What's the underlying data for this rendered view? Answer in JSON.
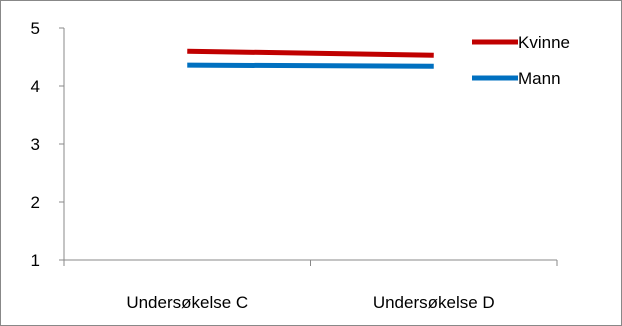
{
  "chart_data": {
    "type": "line",
    "categories": [
      "Undersøkelse C",
      "Undersøkelse D"
    ],
    "series": [
      {
        "name": "Kvinne",
        "values": [
          4.6,
          4.53
        ],
        "color": "#C00000"
      },
      {
        "name": "Mann",
        "values": [
          4.36,
          4.34
        ],
        "color": "#0070C0"
      }
    ],
    "ylim": [
      1,
      5
    ],
    "yticks": [
      "1",
      "2",
      "3",
      "4",
      "5"
    ],
    "grid": false,
    "legend": "top-right"
  }
}
